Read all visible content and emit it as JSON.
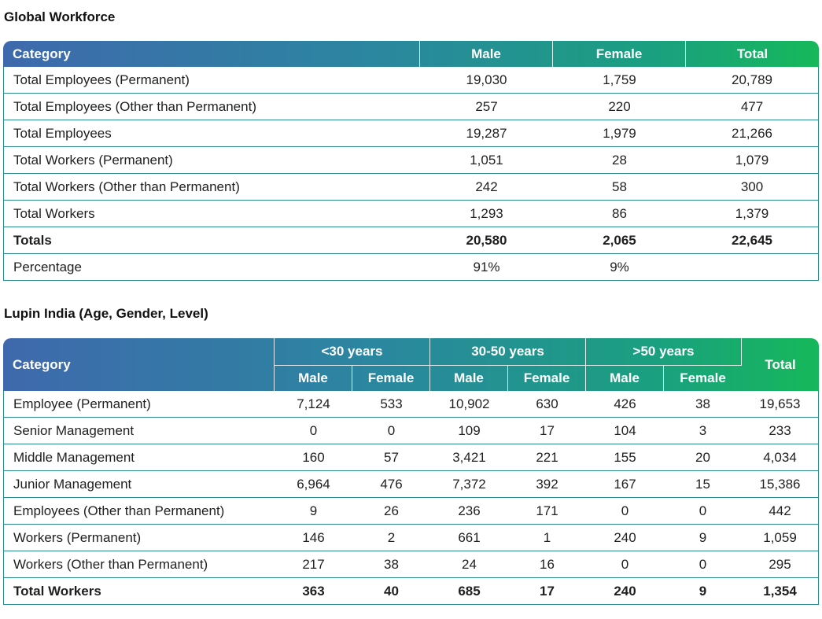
{
  "global_workforce": {
    "title": "Global Workforce",
    "headers": [
      "Category",
      "Male",
      "Female",
      "Total"
    ],
    "rows": [
      [
        "Total Employees (Permanent)",
        "19,030",
        "1,759",
        "20,789"
      ],
      [
        "Total Employees (Other than Permanent)",
        "257",
        "220",
        "477"
      ],
      [
        "Total Employees",
        "19,287",
        "1,979",
        "21,266"
      ],
      [
        "Total Workers (Permanent)",
        "1,051",
        "28",
        "1,079"
      ],
      [
        "Total Workers (Other than Permanent)",
        "242",
        "58",
        "300"
      ],
      [
        "Total Workers",
        "1,293",
        "86",
        "1,379"
      ],
      [
        "Totals",
        "20,580",
        "2,065",
        "22,645"
      ],
      [
        "Percentage",
        "91%",
        "9%",
        ""
      ]
    ]
  },
  "lupin_india": {
    "title": "Lupin India (Age, Gender, Level)",
    "category_header": "Category",
    "total_header": "Total",
    "age_groups": [
      "<30 years",
      "30-50 years",
      ">50 years"
    ],
    "gender_headers": [
      "Male",
      "Female",
      "Male",
      "Female",
      "Male",
      "Female"
    ],
    "rows": [
      [
        "Employee (Permanent)",
        "7,124",
        "533",
        "10,902",
        "630",
        "426",
        "38",
        "19,653"
      ],
      [
        "Senior Management",
        "0",
        "0",
        "109",
        "17",
        "104",
        "3",
        "233"
      ],
      [
        "Middle Management",
        "160",
        "57",
        "3,421",
        "221",
        "155",
        "20",
        "4,034"
      ],
      [
        "Junior Management",
        "6,964",
        "476",
        "7,372",
        "392",
        "167",
        "15",
        "15,386"
      ],
      [
        "Employees (Other than Permanent)",
        "9",
        "26",
        "236",
        "171",
        "0",
        "0",
        "442"
      ],
      [
        "Workers (Permanent)",
        "146",
        "2",
        "661",
        "1",
        "240",
        "9",
        "1,059"
      ],
      [
        "Workers (Other than Permanent)",
        "217",
        "38",
        "24",
        "16",
        "0",
        "0",
        "295"
      ],
      [
        "Total Workers",
        "363",
        "40",
        "685",
        "17",
        "240",
        "9",
        "1,354"
      ]
    ]
  }
}
